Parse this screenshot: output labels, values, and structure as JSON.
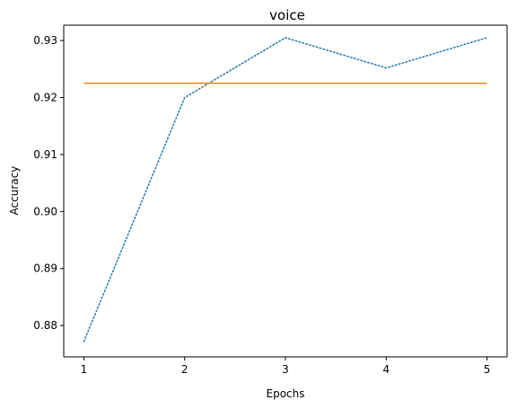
{
  "chart_data": {
    "type": "line",
    "title": "voice",
    "xlabel": "Epochs",
    "ylabel": "Accuracy",
    "x": [
      1,
      2,
      3,
      4,
      5
    ],
    "xticks": [
      "1",
      "2",
      "3",
      "4",
      "5"
    ],
    "yticks": [
      "0.88",
      "0.89",
      "0.90",
      "0.91",
      "0.92",
      "0.93"
    ],
    "xlim": [
      0.8,
      5.2
    ],
    "ylim": [
      0.8745,
      0.9327
    ],
    "grid": false,
    "series": [
      {
        "values": [
          0.8772,
          0.92,
          0.9305,
          0.9252,
          0.9305
        ],
        "color": "#1f77b4",
        "style": "dotted"
      },
      {
        "values": [
          0.9225,
          0.9225,
          0.9225,
          0.9225,
          0.9225
        ],
        "color": "#ff7f0e",
        "style": "solid"
      }
    ]
  }
}
